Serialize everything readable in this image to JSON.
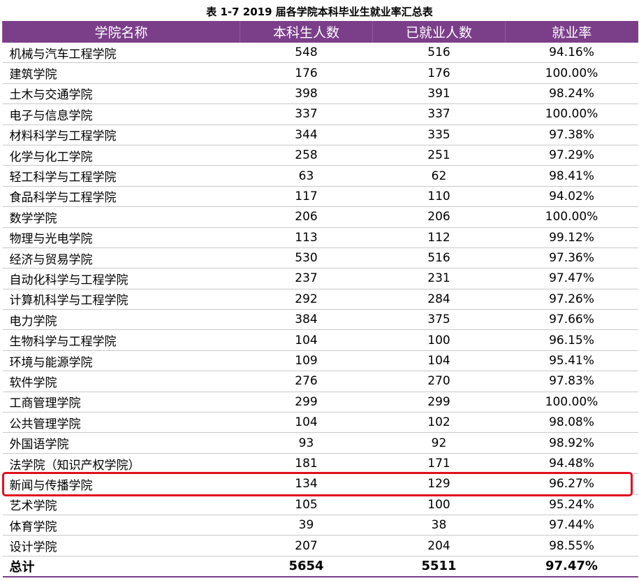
{
  "caption": "表 1-7    2019 届各学院本科毕业生就业率汇总表",
  "headers": [
    "学院名称",
    "本科生人数",
    "已就业人数",
    "就业率"
  ],
  "rows": [
    {
      "name": "机械与汽车工程学院",
      "students": "548",
      "employed": "516",
      "rate": "94.16%"
    },
    {
      "name": "建筑学院",
      "students": "176",
      "employed": "176",
      "rate": "100.00%"
    },
    {
      "name": "土木与交通学院",
      "students": "398",
      "employed": "391",
      "rate": "98.24%"
    },
    {
      "name": "电子与信息学院",
      "students": "337",
      "employed": "337",
      "rate": "100.00%"
    },
    {
      "name": "材料科学与工程学院",
      "students": "344",
      "employed": "335",
      "rate": "97.38%"
    },
    {
      "name": "化学与化工学院",
      "students": "258",
      "employed": "251",
      "rate": "97.29%"
    },
    {
      "name": "轻工科学与工程学院",
      "students": "63",
      "employed": "62",
      "rate": "98.41%"
    },
    {
      "name": "食品科学与工程学院",
      "students": "117",
      "employed": "110",
      "rate": "94.02%"
    },
    {
      "name": "数学学院",
      "students": "206",
      "employed": "206",
      "rate": "100.00%"
    },
    {
      "name": "物理与光电学院",
      "students": "113",
      "employed": "112",
      "rate": "99.12%"
    },
    {
      "name": "经济与贸易学院",
      "students": "530",
      "employed": "516",
      "rate": "97.36%"
    },
    {
      "name": "自动化科学与工程学院",
      "students": "237",
      "employed": "231",
      "rate": "97.47%"
    },
    {
      "name": "计算机科学与工程学院",
      "students": "292",
      "employed": "284",
      "rate": "97.26%"
    },
    {
      "name": "电力学院",
      "students": "384",
      "employed": "375",
      "rate": "97.66%"
    },
    {
      "name": "生物科学与工程学院",
      "students": "104",
      "employed": "100",
      "rate": "96.15%"
    },
    {
      "name": "环境与能源学院",
      "students": "109",
      "employed": "104",
      "rate": "95.41%"
    },
    {
      "name": "软件学院",
      "students": "276",
      "employed": "270",
      "rate": "97.83%"
    },
    {
      "name": "工商管理学院",
      "students": "299",
      "employed": "299",
      "rate": "100.00%"
    },
    {
      "name": "公共管理学院",
      "students": "104",
      "employed": "102",
      "rate": "98.08%"
    },
    {
      "name": "外国语学院",
      "students": "93",
      "employed": "92",
      "rate": "98.92%"
    },
    {
      "name": "法学院（知识产权学院）",
      "students": "181",
      "employed": "171",
      "rate": "94.48%"
    },
    {
      "name": "新闻与传播学院",
      "students": "134",
      "employed": "129",
      "rate": "96.27%",
      "highlighted": true
    },
    {
      "name": "艺术学院",
      "students": "105",
      "employed": "100",
      "rate": "95.24%"
    },
    {
      "name": "体育学院",
      "students": "39",
      "employed": "38",
      "rate": "97.44%"
    },
    {
      "name": "设计学院",
      "students": "207",
      "employed": "204",
      "rate": "98.55%"
    }
  ],
  "total": {
    "name": "总计",
    "students": "5654",
    "employed": "5511",
    "rate": "97.47%"
  },
  "colors": {
    "header_bg": "#7b3f8a",
    "highlight_border": "#e0101e"
  }
}
